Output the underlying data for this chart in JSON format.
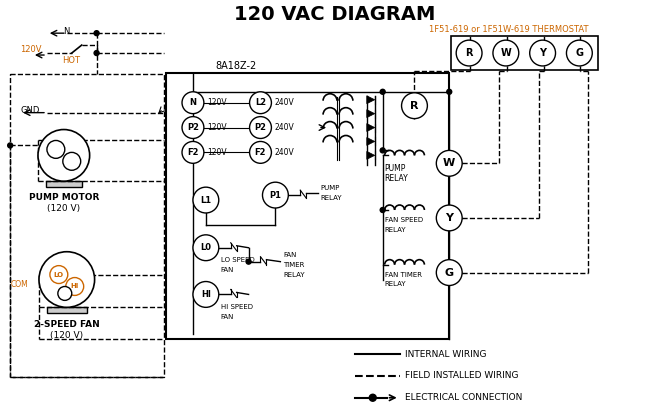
{
  "title": "120 VAC DIAGRAM",
  "title_fontsize": 14,
  "bg_color": "#ffffff",
  "line_color": "#000000",
  "orange_color": "#cc6600",
  "thermostat_label": "1F51-619 or 1F51W-619 THERMOSTAT",
  "controller_label": "8A18Z-2",
  "legend": [
    {
      "label": "INTERNAL WIRING",
      "style": "solid"
    },
    {
      "label": "FIELD INSTALLED WIRING",
      "style": "dashed"
    },
    {
      "label": "ELECTRICAL CONNECTION",
      "style": "dot_arrow"
    }
  ]
}
